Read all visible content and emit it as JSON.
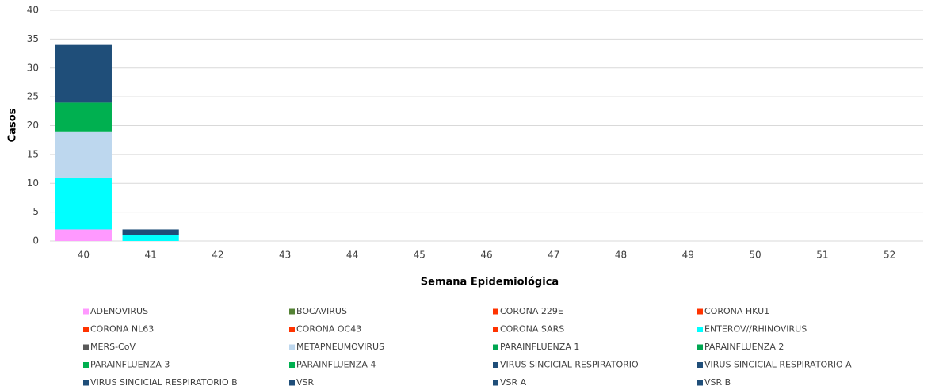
{
  "chart_data": {
    "type": "stacked_bar",
    "x_label": "Semana Epidemiológica",
    "y_label": "Casos",
    "categories": [
      "40",
      "41",
      "42",
      "43",
      "44",
      "45",
      "46",
      "47",
      "48",
      "49",
      "50",
      "51",
      "52"
    ],
    "ylim": [
      0,
      40
    ],
    "yticks": [
      0,
      5,
      10,
      15,
      20,
      25,
      30,
      35,
      40
    ],
    "grid": true,
    "legend": "bottom",
    "series": [
      {
        "name": "ADENOVIRUS",
        "color": "#ff99ff",
        "values": [
          2,
          0,
          0,
          0,
          0,
          0,
          0,
          0,
          0,
          0,
          0,
          0,
          0
        ]
      },
      {
        "name": "BOCAVIRUS",
        "color": "#548235",
        "values": [
          0,
          0,
          0,
          0,
          0,
          0,
          0,
          0,
          0,
          0,
          0,
          0,
          0
        ]
      },
      {
        "name": "CORONA 229E",
        "color": "#ff3300",
        "values": [
          0,
          0,
          0,
          0,
          0,
          0,
          0,
          0,
          0,
          0,
          0,
          0,
          0
        ]
      },
      {
        "name": "CORONA HKU1",
        "color": "#ff3300",
        "values": [
          0,
          0,
          0,
          0,
          0,
          0,
          0,
          0,
          0,
          0,
          0,
          0,
          0
        ]
      },
      {
        "name": "CORONA NL63",
        "color": "#ff3300",
        "values": [
          0,
          0,
          0,
          0,
          0,
          0,
          0,
          0,
          0,
          0,
          0,
          0,
          0
        ]
      },
      {
        "name": "CORONA OC43",
        "color": "#ff3300",
        "values": [
          0,
          0,
          0,
          0,
          0,
          0,
          0,
          0,
          0,
          0,
          0,
          0,
          0
        ]
      },
      {
        "name": "CORONA SARS",
        "color": "#ff3300",
        "values": [
          0,
          0,
          0,
          0,
          0,
          0,
          0,
          0,
          0,
          0,
          0,
          0,
          0
        ]
      },
      {
        "name": "ENTEROV//RHINOVIRUS",
        "color": "#00ffff",
        "values": [
          9,
          1,
          0,
          0,
          0,
          0,
          0,
          0,
          0,
          0,
          0,
          0,
          0
        ]
      },
      {
        "name": "MERS-CoV",
        "color": "#595959",
        "values": [
          0,
          0,
          0,
          0,
          0,
          0,
          0,
          0,
          0,
          0,
          0,
          0,
          0
        ]
      },
      {
        "name": "METAPNEUMOVIRUS",
        "color": "#bdd7ee",
        "values": [
          8,
          0,
          0,
          0,
          0,
          0,
          0,
          0,
          0,
          0,
          0,
          0,
          0
        ]
      },
      {
        "name": "PARAINFLUENZA 1",
        "color": "#00a651",
        "values": [
          0,
          0,
          0,
          0,
          0,
          0,
          0,
          0,
          0,
          0,
          0,
          0,
          0
        ]
      },
      {
        "name": "PARAINFLUENZA 2",
        "color": "#00a651",
        "values": [
          0,
          0,
          0,
          0,
          0,
          0,
          0,
          0,
          0,
          0,
          0,
          0,
          0
        ]
      },
      {
        "name": "PARAINFLUENZA 3",
        "color": "#00b050",
        "values": [
          5,
          0,
          0,
          0,
          0,
          0,
          0,
          0,
          0,
          0,
          0,
          0,
          0
        ]
      },
      {
        "name": "PARAINFLUENZA 4",
        "color": "#00b050",
        "values": [
          0,
          0,
          0,
          0,
          0,
          0,
          0,
          0,
          0,
          0,
          0,
          0,
          0
        ]
      },
      {
        "name": "VIRUS SINCICIAL RESPIRATORIO",
        "color": "#1f4e79",
        "values": [
          0,
          0,
          0,
          0,
          0,
          0,
          0,
          0,
          0,
          0,
          0,
          0,
          0
        ]
      },
      {
        "name": "VIRUS SINCICIAL RESPIRATORIO A",
        "color": "#1f4e79",
        "values": [
          0,
          0,
          0,
          0,
          0,
          0,
          0,
          0,
          0,
          0,
          0,
          0,
          0
        ]
      },
      {
        "name": "VIRUS SINCICIAL RESPIRATORIO B",
        "color": "#1f4e79",
        "values": [
          0,
          0,
          0,
          0,
          0,
          0,
          0,
          0,
          0,
          0,
          0,
          0,
          0
        ]
      },
      {
        "name": "VSR",
        "color": "#1f4e79",
        "values": [
          10,
          1,
          0,
          0,
          0,
          0,
          0,
          0,
          0,
          0,
          0,
          0,
          0
        ]
      },
      {
        "name": "VSR A",
        "color": "#1f4e79",
        "values": [
          0,
          0,
          0,
          0,
          0,
          0,
          0,
          0,
          0,
          0,
          0,
          0,
          0
        ]
      },
      {
        "name": "VSR B",
        "color": "#1f4e79",
        "values": [
          0,
          0,
          0,
          0,
          0,
          0,
          0,
          0,
          0,
          0,
          0,
          0,
          0
        ]
      }
    ]
  }
}
